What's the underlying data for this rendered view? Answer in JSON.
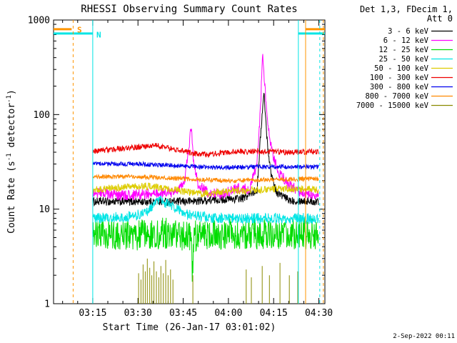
{
  "title": "RHESSI Observing Summary Count Rates",
  "timestamp": "2-Sep-2022 00:11",
  "legend": {
    "header_line1": "Det 1,3, FDecim 1,",
    "header_line2": "Att 0"
  },
  "axes": {
    "y_label_parts": [
      {
        "t": "Count Rate (s"
      },
      {
        "t": "-1",
        "sup": true
      },
      {
        "t": " detector"
      },
      {
        "t": "-1",
        "sup": true
      },
      {
        "t": ")"
      }
    ]
  },
  "chart_data": {
    "type": "line",
    "title": "RHESSI Observing Summary Count Rates",
    "xlabel": "Start Time (26-Jan-17 03:01:02)",
    "ylabel": "Count Rate (s⁻¹ detector⁻¹)",
    "y_scale": "log",
    "ylim": [
      1,
      1000
    ],
    "y_tick_labels": [
      "1",
      "10",
      "100",
      "1000"
    ],
    "x_unit": "minutes after 03:00 26-Jan-17",
    "axis_range_minutes": [
      2,
      92
    ],
    "x_tick_minutes": [
      15,
      30,
      45,
      60,
      75,
      90
    ],
    "x_tick_labels": [
      "03:15",
      "03:30",
      "03:45",
      "04:00",
      "04:15",
      "04:30"
    ],
    "legend_header": [
      "Det 1,3, FDecim 1,",
      "Att 0"
    ],
    "series": [
      {
        "name": "3 - 6 keV",
        "color": "#000000",
        "noise": 0.1,
        "points": [
          [
            15,
            12
          ],
          [
            30,
            12
          ],
          [
            45,
            12
          ],
          [
            55,
            12.5
          ],
          [
            65,
            13
          ],
          [
            69.5,
            16
          ],
          [
            70.8,
            70
          ],
          [
            71.8,
            170
          ],
          [
            72.8,
            55
          ],
          [
            74,
            25
          ],
          [
            76,
            15
          ],
          [
            80,
            12.5
          ],
          [
            90,
            12
          ]
        ]
      },
      {
        "name": "6 - 12 keV",
        "color": "#ff00ff",
        "noise": 0.13,
        "points": [
          [
            15,
            15
          ],
          [
            25,
            14
          ],
          [
            35,
            14.5
          ],
          [
            43,
            15
          ],
          [
            45.5,
            20
          ],
          [
            47,
            48
          ],
          [
            47.7,
            75
          ],
          [
            48.5,
            30
          ],
          [
            50,
            18
          ],
          [
            53,
            15
          ],
          [
            58,
            14.5
          ],
          [
            64,
            17
          ],
          [
            67,
            16
          ],
          [
            69.5,
            30
          ],
          [
            70.8,
            150
          ],
          [
            71.3,
            470
          ],
          [
            72.3,
            160
          ],
          [
            73.5,
            60
          ],
          [
            75,
            35
          ],
          [
            77,
            24
          ],
          [
            80,
            18
          ],
          [
            84,
            15
          ],
          [
            90,
            14
          ]
        ]
      },
      {
        "name": "12 - 25 keV",
        "color": "#00dd00",
        "noise": 0.38,
        "points": [
          [
            15,
            5.5
          ],
          [
            30,
            5.3
          ],
          [
            40,
            5.6
          ],
          [
            47.6,
            5
          ],
          [
            48.1,
            1.9
          ],
          [
            48.7,
            5.2
          ],
          [
            60,
            5.5
          ],
          [
            75,
            5.4
          ],
          [
            90,
            5.5
          ]
        ]
      },
      {
        "name": "25 - 50 keV",
        "color": "#00e5e5",
        "noise": 0.13,
        "points": [
          [
            15,
            8
          ],
          [
            28,
            8.3
          ],
          [
            33,
            9.5
          ],
          [
            37.5,
            12.5
          ],
          [
            41,
            11
          ],
          [
            45,
            9
          ],
          [
            50,
            8.3
          ],
          [
            60,
            8
          ],
          [
            75,
            8
          ],
          [
            90,
            8
          ]
        ]
      },
      {
        "name": "50 - 100 keV",
        "color": "#ddcc00",
        "noise": 0.09,
        "points": [
          [
            15,
            16
          ],
          [
            25,
            17
          ],
          [
            33,
            17.5
          ],
          [
            40,
            16.5
          ],
          [
            47,
            15
          ],
          [
            52,
            14.5
          ],
          [
            60,
            15.5
          ],
          [
            70,
            16
          ],
          [
            80,
            16.5
          ],
          [
            90,
            16
          ]
        ]
      },
      {
        "name": "100 - 300 keV",
        "color": "#ee0000",
        "noise": 0.07,
        "points": [
          [
            15,
            41
          ],
          [
            25,
            44
          ],
          [
            32,
            46
          ],
          [
            36,
            47
          ],
          [
            42,
            43
          ],
          [
            48,
            39
          ],
          [
            53,
            38
          ],
          [
            60,
            40
          ],
          [
            70,
            41
          ],
          [
            80,
            40
          ],
          [
            90,
            40.5
          ]
        ]
      },
      {
        "name": "300 - 800 keV",
        "color": "#0000ee",
        "noise": 0.055,
        "points": [
          [
            15,
            30
          ],
          [
            30,
            30
          ],
          [
            45,
            28.5
          ],
          [
            55,
            27.5
          ],
          [
            70,
            28
          ],
          [
            90,
            28
          ]
        ]
      },
      {
        "name": "800 - 7000 keV",
        "color": "#ff8800",
        "noise": 0.055,
        "points": [
          [
            15,
            22
          ],
          [
            30,
            22
          ],
          [
            45,
            21
          ],
          [
            60,
            20
          ],
          [
            75,
            20.5
          ],
          [
            90,
            21
          ]
        ]
      },
      {
        "name": "7000 - 15000 keV",
        "color": "#8a8a00",
        "style": "spikes",
        "baseline": 1,
        "spikes": [
          [
            30.2,
            2.1
          ],
          [
            31,
            1.8
          ],
          [
            31.7,
            2.6
          ],
          [
            32.4,
            2.2
          ],
          [
            33.1,
            3.0
          ],
          [
            33.9,
            2.4
          ],
          [
            34.6,
            2.0
          ],
          [
            35.3,
            2.8
          ],
          [
            36.1,
            2.2
          ],
          [
            36.9,
            1.9
          ],
          [
            37.6,
            2.5
          ],
          [
            38.4,
            2.1
          ],
          [
            39.2,
            2.9
          ],
          [
            40,
            2.0
          ],
          [
            40.8,
            2.3
          ],
          [
            41.6,
            1.8
          ],
          [
            48.2,
            2.0
          ],
          [
            65.9,
            2.3
          ],
          [
            67.6,
            1.9
          ],
          [
            71.2,
            2.5
          ],
          [
            73.6,
            2.0
          ],
          [
            77.1,
            2.7
          ],
          [
            80.2,
            2.0
          ],
          [
            83,
            2.2
          ]
        ]
      }
    ],
    "flags": {
      "saa_color": "#ff9500",
      "night_color": "#00e5e5",
      "top_bars": [
        {
          "type": "saa",
          "t": [
            2,
            8
          ],
          "level": 800
        },
        {
          "type": "night",
          "t": [
            2,
            15
          ],
          "level": 720
        },
        {
          "type": "night",
          "t": [
            83.2,
            92
          ],
          "level": 720
        },
        {
          "type": "saa",
          "t": [
            85.6,
            92
          ],
          "level": 800
        }
      ],
      "vlines": [
        {
          "type": "saa",
          "t": 8.5,
          "dash": true
        },
        {
          "type": "night",
          "t": 15,
          "dash": false
        },
        {
          "type": "night",
          "t": 83.2,
          "dash": false
        },
        {
          "type": "saa",
          "t": 85.6,
          "dash": false
        },
        {
          "type": "night",
          "t": 90.3,
          "dash": true
        },
        {
          "type": "saa",
          "t": 91.5,
          "dash": true
        }
      ],
      "labels": [
        {
          "text": "S",
          "type": "saa",
          "t": 10.6,
          "level": 790
        },
        {
          "text": "N",
          "type": "night",
          "t": 17,
          "level": 700
        }
      ]
    }
  }
}
